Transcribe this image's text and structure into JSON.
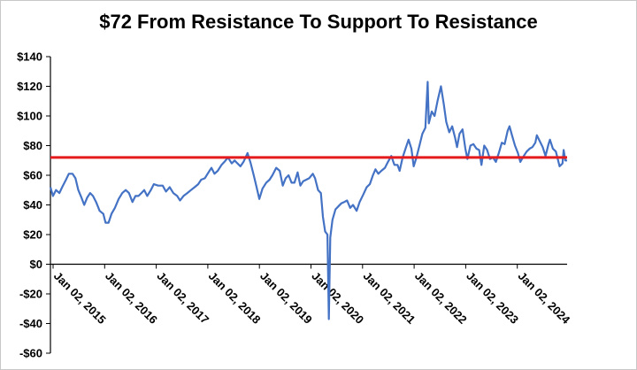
{
  "chart_data": {
    "type": "line",
    "title": "$72 From Resistance To Support To Resistance",
    "xlabel": "",
    "ylabel": "",
    "ylim": [
      -60,
      140
    ],
    "y_ticks": [
      -60,
      -40,
      -20,
      0,
      20,
      40,
      60,
      80,
      100,
      120,
      140
    ],
    "y_tick_labels": [
      "-$60",
      "-$40",
      "-$20",
      "$0",
      "$20",
      "$40",
      "$60",
      "$80",
      "$100",
      "$120",
      "$140"
    ],
    "x_tick_labels": [
      "Jan 02, 2015",
      "Jan 02, 2016",
      "Jan 02, 2017",
      "Jan 02, 2018",
      "Jan 02, 2019",
      "Jan 02, 2020",
      "Jan 02, 2021",
      "Jan 02, 2022",
      "Jan 02, 2023",
      "Jan 02, 2024"
    ],
    "x_range": [
      "2015-01-02",
      "2024-11-01"
    ],
    "grid": false,
    "legend": "none",
    "series": [
      {
        "color": "#4472C4",
        "points": [
          [
            "2015-01-02",
            52
          ],
          [
            "2015-01-20",
            46
          ],
          [
            "2015-02-10",
            50
          ],
          [
            "2015-03-05",
            48
          ],
          [
            "2015-03-25",
            52
          ],
          [
            "2015-04-20",
            57
          ],
          [
            "2015-05-10",
            61
          ],
          [
            "2015-06-05",
            61
          ],
          [
            "2015-06-25",
            58
          ],
          [
            "2015-07-15",
            50
          ],
          [
            "2015-08-05",
            45
          ],
          [
            "2015-08-25",
            40
          ],
          [
            "2015-09-15",
            45
          ],
          [
            "2015-10-05",
            48
          ],
          [
            "2015-10-25",
            46
          ],
          [
            "2015-11-15",
            42
          ],
          [
            "2015-12-10",
            36
          ],
          [
            "2016-01-05",
            34
          ],
          [
            "2016-01-20",
            28
          ],
          [
            "2016-02-10",
            28
          ],
          [
            "2016-03-01",
            34
          ],
          [
            "2016-03-25",
            38
          ],
          [
            "2016-04-20",
            44
          ],
          [
            "2016-05-15",
            48
          ],
          [
            "2016-06-08",
            50
          ],
          [
            "2016-07-01",
            48
          ],
          [
            "2016-07-25",
            42
          ],
          [
            "2016-08-15",
            46
          ],
          [
            "2016-09-05",
            46
          ],
          [
            "2016-09-25",
            48
          ],
          [
            "2016-10-15",
            50
          ],
          [
            "2016-11-05",
            46
          ],
          [
            "2016-11-30",
            50
          ],
          [
            "2016-12-20",
            54
          ],
          [
            "2017-01-20",
            53
          ],
          [
            "2017-02-20",
            53
          ],
          [
            "2017-03-15",
            49
          ],
          [
            "2017-04-10",
            52
          ],
          [
            "2017-05-05",
            48
          ],
          [
            "2017-06-01",
            46
          ],
          [
            "2017-06-21",
            43
          ],
          [
            "2017-07-15",
            46
          ],
          [
            "2017-08-10",
            48
          ],
          [
            "2017-09-05",
            50
          ],
          [
            "2017-10-01",
            52
          ],
          [
            "2017-10-25",
            54
          ],
          [
            "2017-11-15",
            57
          ],
          [
            "2017-12-10",
            58
          ],
          [
            "2018-01-05",
            62
          ],
          [
            "2018-01-25",
            65
          ],
          [
            "2018-02-15",
            61
          ],
          [
            "2018-03-10",
            63
          ],
          [
            "2018-04-05",
            67
          ],
          [
            "2018-04-25",
            69
          ],
          [
            "2018-05-20",
            72
          ],
          [
            "2018-06-15",
            68
          ],
          [
            "2018-07-05",
            70
          ],
          [
            "2018-07-25",
            68
          ],
          [
            "2018-08-15",
            66
          ],
          [
            "2018-09-05",
            69
          ],
          [
            "2018-10-03",
            75
          ],
          [
            "2018-10-25",
            68
          ],
          [
            "2018-11-15",
            60
          ],
          [
            "2018-12-05",
            52
          ],
          [
            "2018-12-24",
            44
          ],
          [
            "2019-01-15",
            51
          ],
          [
            "2019-02-10",
            55
          ],
          [
            "2019-03-05",
            57
          ],
          [
            "2019-03-25",
            60
          ],
          [
            "2019-04-20",
            65
          ],
          [
            "2019-05-15",
            63
          ],
          [
            "2019-06-05",
            53
          ],
          [
            "2019-06-25",
            58
          ],
          [
            "2019-07-15",
            60
          ],
          [
            "2019-08-05",
            55
          ],
          [
            "2019-08-25",
            55
          ],
          [
            "2019-09-16",
            62
          ],
          [
            "2019-10-05",
            53
          ],
          [
            "2019-10-25",
            56
          ],
          [
            "2019-11-15",
            57
          ],
          [
            "2019-12-05",
            58
          ],
          [
            "2019-12-31",
            61
          ],
          [
            "2020-01-15",
            58
          ],
          [
            "2020-02-05",
            50
          ],
          [
            "2020-02-25",
            48
          ],
          [
            "2020-03-10",
            32
          ],
          [
            "2020-03-25",
            22
          ],
          [
            "2020-04-10",
            20
          ],
          [
            "2020-04-20",
            -37
          ],
          [
            "2020-04-30",
            18
          ],
          [
            "2020-05-15",
            30
          ],
          [
            "2020-06-05",
            37
          ],
          [
            "2020-06-25",
            39
          ],
          [
            "2020-07-15",
            41
          ],
          [
            "2020-08-05",
            42
          ],
          [
            "2020-08-25",
            43
          ],
          [
            "2020-09-15",
            38
          ],
          [
            "2020-10-05",
            40
          ],
          [
            "2020-10-30",
            36
          ],
          [
            "2020-11-20",
            42
          ],
          [
            "2020-12-15",
            47
          ],
          [
            "2021-01-08",
            52
          ],
          [
            "2021-01-30",
            54
          ],
          [
            "2021-02-20",
            60
          ],
          [
            "2021-03-10",
            64
          ],
          [
            "2021-03-30",
            61
          ],
          [
            "2021-04-20",
            63
          ],
          [
            "2021-05-15",
            65
          ],
          [
            "2021-06-05",
            69
          ],
          [
            "2021-06-28",
            73
          ],
          [
            "2021-07-20",
            67
          ],
          [
            "2021-08-10",
            67
          ],
          [
            "2021-08-25",
            63
          ],
          [
            "2021-09-15",
            72
          ],
          [
            "2021-10-05",
            78
          ],
          [
            "2021-10-26",
            84
          ],
          [
            "2021-11-15",
            78
          ],
          [
            "2021-12-01",
            66
          ],
          [
            "2021-12-20",
            72
          ],
          [
            "2022-01-10",
            80
          ],
          [
            "2022-01-30",
            88
          ],
          [
            "2022-02-20",
            92
          ],
          [
            "2022-03-08",
            123
          ],
          [
            "2022-03-16",
            95
          ],
          [
            "2022-04-05",
            103
          ],
          [
            "2022-04-25",
            100
          ],
          [
            "2022-05-15",
            110
          ],
          [
            "2022-06-08",
            120
          ],
          [
            "2022-06-28",
            108
          ],
          [
            "2022-07-15",
            96
          ],
          [
            "2022-08-05",
            89
          ],
          [
            "2022-08-25",
            93
          ],
          [
            "2022-09-15",
            85
          ],
          [
            "2022-09-28",
            79
          ],
          [
            "2022-10-15",
            88
          ],
          [
            "2022-11-05",
            91
          ],
          [
            "2022-11-25",
            78
          ],
          [
            "2022-12-09",
            71
          ],
          [
            "2022-12-30",
            80
          ],
          [
            "2023-01-20",
            81
          ],
          [
            "2023-02-10",
            78
          ],
          [
            "2023-03-01",
            77
          ],
          [
            "2023-03-17",
            67
          ],
          [
            "2023-04-05",
            80
          ],
          [
            "2023-04-25",
            77
          ],
          [
            "2023-05-15",
            71
          ],
          [
            "2023-06-05",
            72
          ],
          [
            "2023-06-25",
            69
          ],
          [
            "2023-07-15",
            75
          ],
          [
            "2023-08-05",
            82
          ],
          [
            "2023-08-25",
            81
          ],
          [
            "2023-09-15",
            90
          ],
          [
            "2023-09-28",
            93
          ],
          [
            "2023-10-15",
            87
          ],
          [
            "2023-11-05",
            80
          ],
          [
            "2023-11-25",
            75
          ],
          [
            "2023-12-12",
            69
          ],
          [
            "2024-01-05",
            73
          ],
          [
            "2024-01-25",
            76
          ],
          [
            "2024-02-15",
            78
          ],
          [
            "2024-03-05",
            79
          ],
          [
            "2024-03-25",
            82
          ],
          [
            "2024-04-05",
            87
          ],
          [
            "2024-04-25",
            83
          ],
          [
            "2024-05-15",
            79
          ],
          [
            "2024-06-04",
            73
          ],
          [
            "2024-06-25",
            81
          ],
          [
            "2024-07-05",
            84
          ],
          [
            "2024-07-25",
            78
          ],
          [
            "2024-08-15",
            76
          ],
          [
            "2024-09-10",
            66
          ],
          [
            "2024-09-30",
            68
          ],
          [
            "2024-10-08",
            77
          ],
          [
            "2024-10-20",
            70
          ],
          [
            "2024-11-01",
            70
          ]
        ]
      }
    ],
    "reference_line": {
      "y": 72,
      "color": "#E41A1C"
    }
  }
}
